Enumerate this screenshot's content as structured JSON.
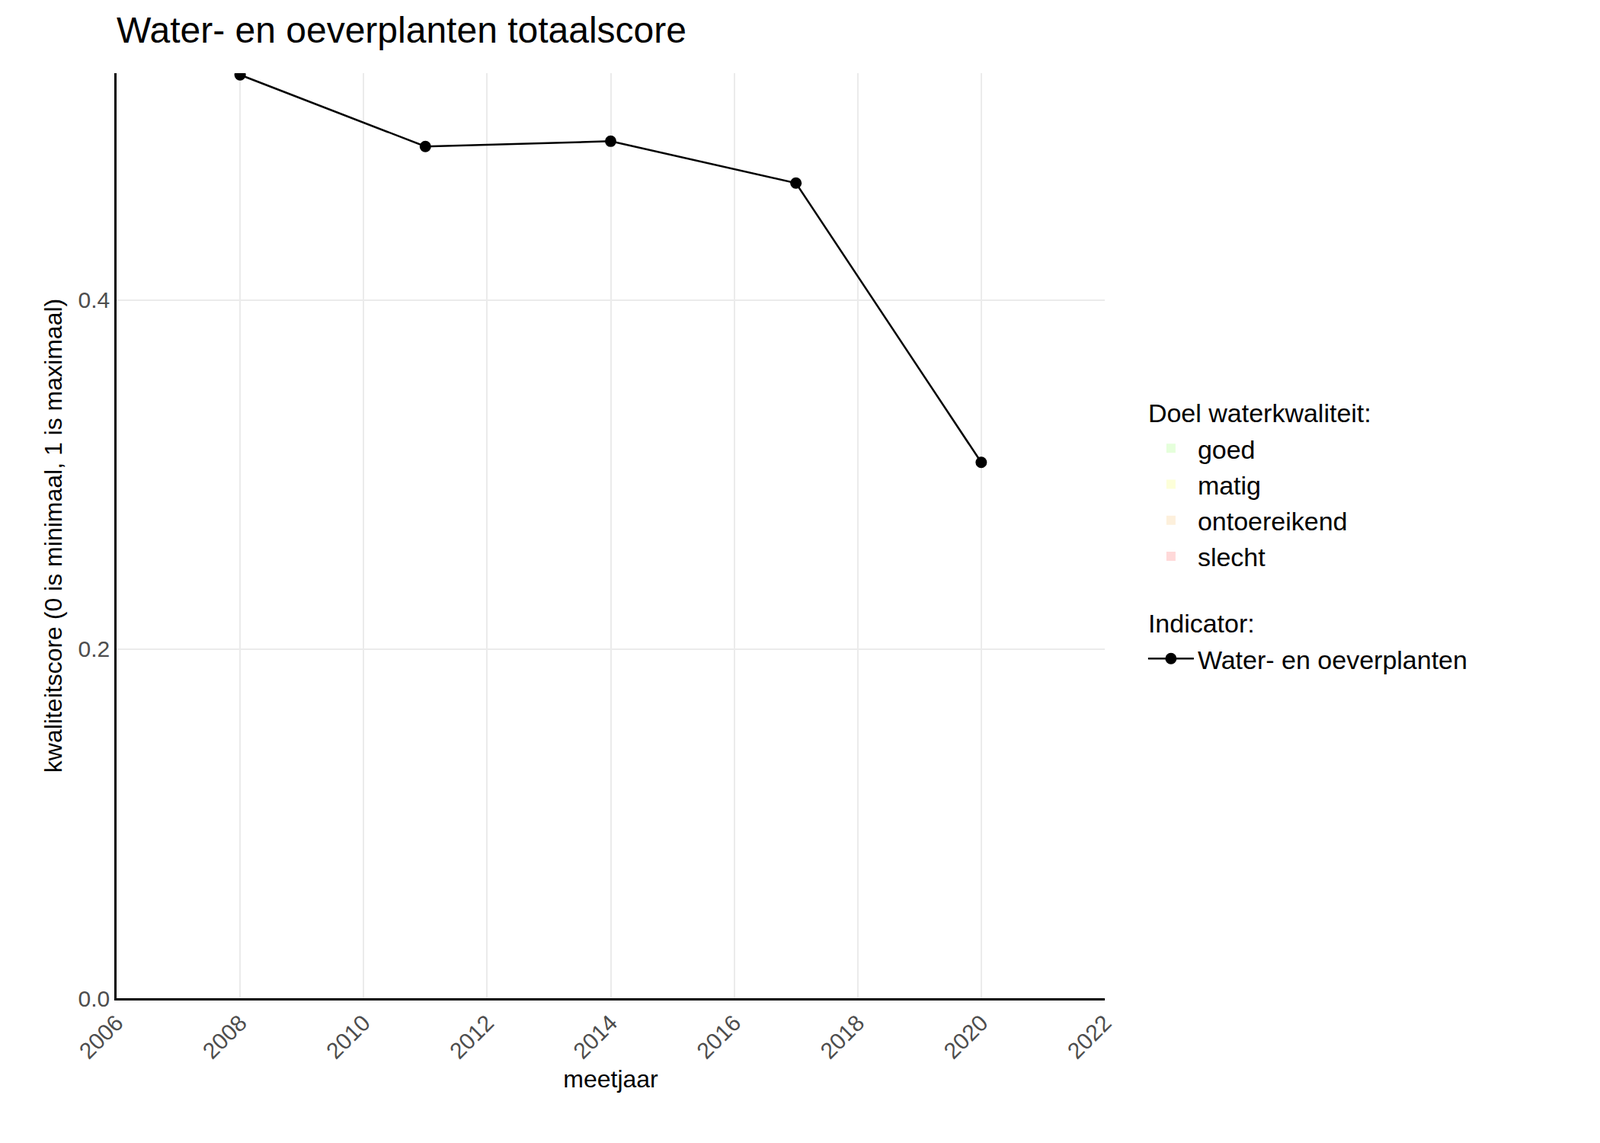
{
  "chart_data": {
    "type": "line",
    "title": "Water- en oeverplanten totaalscore",
    "x_label": "meetjaar",
    "y_label": "kwaliteitscore (0 is minimaal, 1 is maximaal)",
    "x": [
      2008,
      2011,
      2014,
      2017,
      2020
    ],
    "series": [
      {
        "name": "goed",
        "group": "Doel waterkwaliteit:",
        "type": "band",
        "color": "#e5ffdb",
        "values": [
          null,
          null,
          null,
          null,
          null
        ]
      },
      {
        "name": "matig",
        "group": "Doel waterkwaliteit:",
        "type": "band",
        "color": "#fdffd9",
        "values": [
          null,
          null,
          null,
          null,
          null
        ]
      },
      {
        "name": "ontoereikend",
        "group": "Doel waterkwaliteit:",
        "type": "band",
        "color": "#fdf0dc",
        "values": [
          null,
          null,
          null,
          null,
          null
        ]
      },
      {
        "name": "slecht",
        "group": "Doel waterkwaliteit:",
        "type": "band",
        "color": "#ffd9d9",
        "values": [
          null,
          null,
          null,
          null,
          null
        ]
      },
      {
        "name": "Water- en oeverplanten",
        "group": "Indicator:",
        "type": "line",
        "color": "#000000",
        "marker": "circle",
        "line_style": "solid",
        "values": [
          0.529,
          0.488,
          0.491,
          0.467,
          0.307
        ]
      }
    ],
    "xlim": [
      2006,
      2022
    ],
    "xticks": [
      2006,
      2008,
      2010,
      2012,
      2014,
      2016,
      2018,
      2020,
      2022
    ],
    "ylim": [
      0,
      0.53
    ],
    "yticks": [
      {
        "value": 0,
        "label": "0.0"
      },
      {
        "value": 0.2,
        "label": "0.2"
      },
      {
        "value": 0.4,
        "label": "0.4"
      }
    ],
    "grid": true,
    "legend": "right"
  }
}
